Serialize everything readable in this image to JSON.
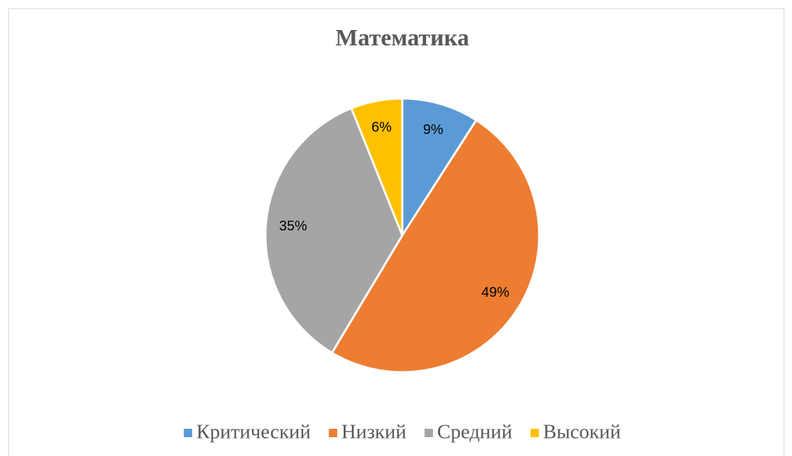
{
  "chart_data": {
    "type": "pie",
    "title": "Математика",
    "categories": [
      "Критический",
      "Низкий",
      "Средний",
      "Высокий"
    ],
    "values": [
      9,
      49,
      35,
      6
    ],
    "value_labels": [
      "9%",
      "49%",
      "35%",
      "6%"
    ],
    "colors": [
      "#5b9bd5",
      "#ed7d31",
      "#a5a5a5",
      "#ffc000"
    ],
    "legend": "bottom"
  }
}
